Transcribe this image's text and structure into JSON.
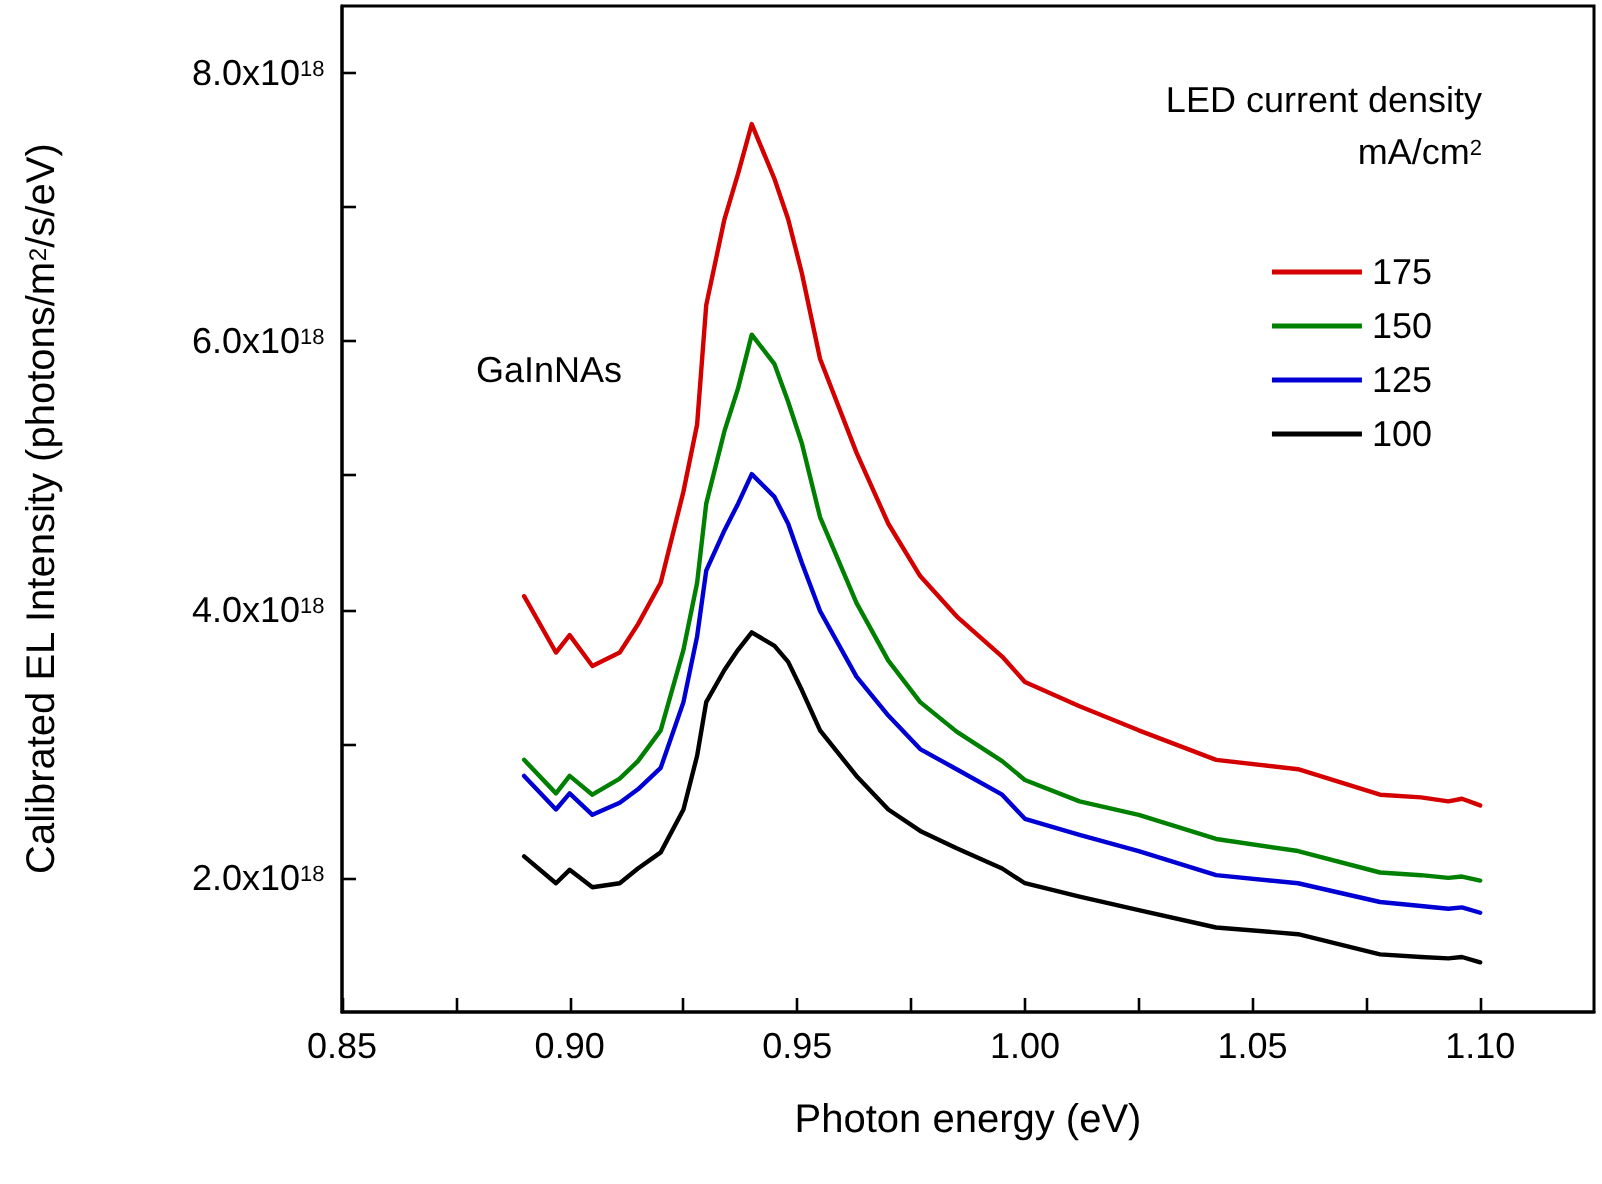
{
  "chart_data": {
    "type": "line",
    "xlabel": "Photon energy (eV)",
    "ylabel": "Calibrated EL Intensity (photons/m$^{2}$/s/eV)",
    "legend_title": "LED current density\nmA/cm$^{2}$",
    "annotations": [
      "GaInNAs"
    ],
    "x": [
      0.89,
      0.897,
      0.9,
      0.905,
      0.911,
      0.915,
      0.92,
      0.925,
      0.928,
      0.93,
      0.934,
      0.937,
      0.94,
      0.945,
      0.948,
      0.951,
      0.955,
      0.963,
      0.97,
      0.977,
      0.985,
      0.995,
      1.0,
      1.012,
      1.025,
      1.042,
      1.06,
      1.078,
      1.087,
      1.093,
      1.096,
      1.1
    ],
    "series": [
      {
        "name": "175",
        "color": "#d40000",
        "values": [
          4.1e+18,
          3.68e+18,
          3.81e+18,
          3.58e+18,
          3.68e+18,
          3.89e+18,
          4.2e+18,
          4.88e+18,
          5.38e+18,
          6.27e+18,
          6.91e+18,
          7.25e+18,
          7.62e+18,
          7.21e+18,
          6.91e+18,
          6.51e+18,
          5.87e+18,
          5.17e+18,
          4.64e+18,
          4.25e+18,
          3.95e+18,
          3.65e+18,
          3.46e+18,
          3.28e+18,
          3.1e+18,
          2.88e+18,
          2.81e+18,
          2.62e+18,
          2.6e+18,
          2.57e+18,
          2.59e+18,
          2.54e+18
        ]
      },
      {
        "name": "150",
        "color": "#008000",
        "values": [
          2.88e+18,
          2.63e+18,
          2.76e+18,
          2.62e+18,
          2.74e+18,
          2.87e+18,
          3.1e+18,
          3.7e+18,
          4.2e+18,
          4.79e+18,
          5.33e+18,
          5.65e+18,
          6.05e+18,
          5.83e+18,
          5.55e+18,
          5.24e+18,
          4.69e+18,
          4.05e+18,
          3.62e+18,
          3.31e+18,
          3.09e+18,
          2.87e+18,
          2.73e+18,
          2.57e+18,
          2.47e+18,
          2.29e+18,
          2.2e+18,
          2.04e+18,
          2.02e+18,
          2e+18,
          2.01e+18,
          1.98e+18
        ]
      },
      {
        "name": "125",
        "color": "#0000d4",
        "values": [
          2.76e+18,
          2.51e+18,
          2.63e+18,
          2.47e+18,
          2.56e+18,
          2.66e+18,
          2.82e+18,
          3.31e+18,
          3.8e+18,
          4.29e+18,
          4.59e+18,
          4.79e+18,
          5.01e+18,
          4.84e+18,
          4.64e+18,
          4.35e+18,
          3.99e+18,
          3.5e+18,
          3.21e+18,
          2.96e+18,
          2.81e+18,
          2.62e+18,
          2.44e+18,
          2.32e+18,
          2.2e+18,
          2.02e+18,
          1.96e+18,
          1.82e+18,
          1.79e+18,
          1.77e+18,
          1.78e+18,
          1.74e+18
        ]
      },
      {
        "name": "100",
        "color": "#000000",
        "values": [
          2.16e+18,
          1.96e+18,
          2.06e+18,
          1.93e+18,
          1.96e+18,
          2.07e+18,
          2.19e+18,
          2.51e+18,
          2.91e+18,
          3.31e+18,
          3.55e+18,
          3.7e+18,
          3.83e+18,
          3.73e+18,
          3.61e+18,
          3.4e+18,
          3.1e+18,
          2.76e+18,
          2.51e+18,
          2.35e+18,
          2.22e+18,
          2.07e+18,
          1.96e+18,
          1.86e+18,
          1.76e+18,
          1.63e+18,
          1.58e+18,
          1.43e+18,
          1.41e+18,
          1.4e+18,
          1.41e+18,
          1.37e+18
        ]
      }
    ],
    "xlim": [
      0.85,
      1.125
    ],
    "xticks": [
      {
        "value": 0.85,
        "label": "0.85"
      },
      {
        "value": 0.875,
        "label": null
      },
      {
        "value": 0.9,
        "label": "0.90"
      },
      {
        "value": 0.925,
        "label": null
      },
      {
        "value": 0.95,
        "label": "0.95"
      },
      {
        "value": 0.975,
        "label": null
      },
      {
        "value": 1.0,
        "label": "1.00"
      },
      {
        "value": 1.025,
        "label": null
      },
      {
        "value": 1.05,
        "label": "1.05"
      },
      {
        "value": 1.075,
        "label": null
      },
      {
        "value": 1.1,
        "label": "1.10"
      }
    ],
    "ylim": [
      1e+18,
      8.5e+18
    ],
    "yticks": [
      {
        "value": 2e+18,
        "label": "2.0x10$^{18}$"
      },
      {
        "value": 3e+18,
        "label": null
      },
      {
        "value": 4e+18,
        "label": "4.0x10$^{18}$"
      },
      {
        "value": 5e+18,
        "label": null
      },
      {
        "value": 6e+18,
        "label": "6.0x10$^{18}$"
      },
      {
        "value": 7e+18,
        "label": null
      },
      {
        "value": 8e+18,
        "label": "8.0x10$^{18}$"
      }
    ],
    "grid": false,
    "legend": "top right",
    "marker": "none",
    "line_style": "solid"
  }
}
